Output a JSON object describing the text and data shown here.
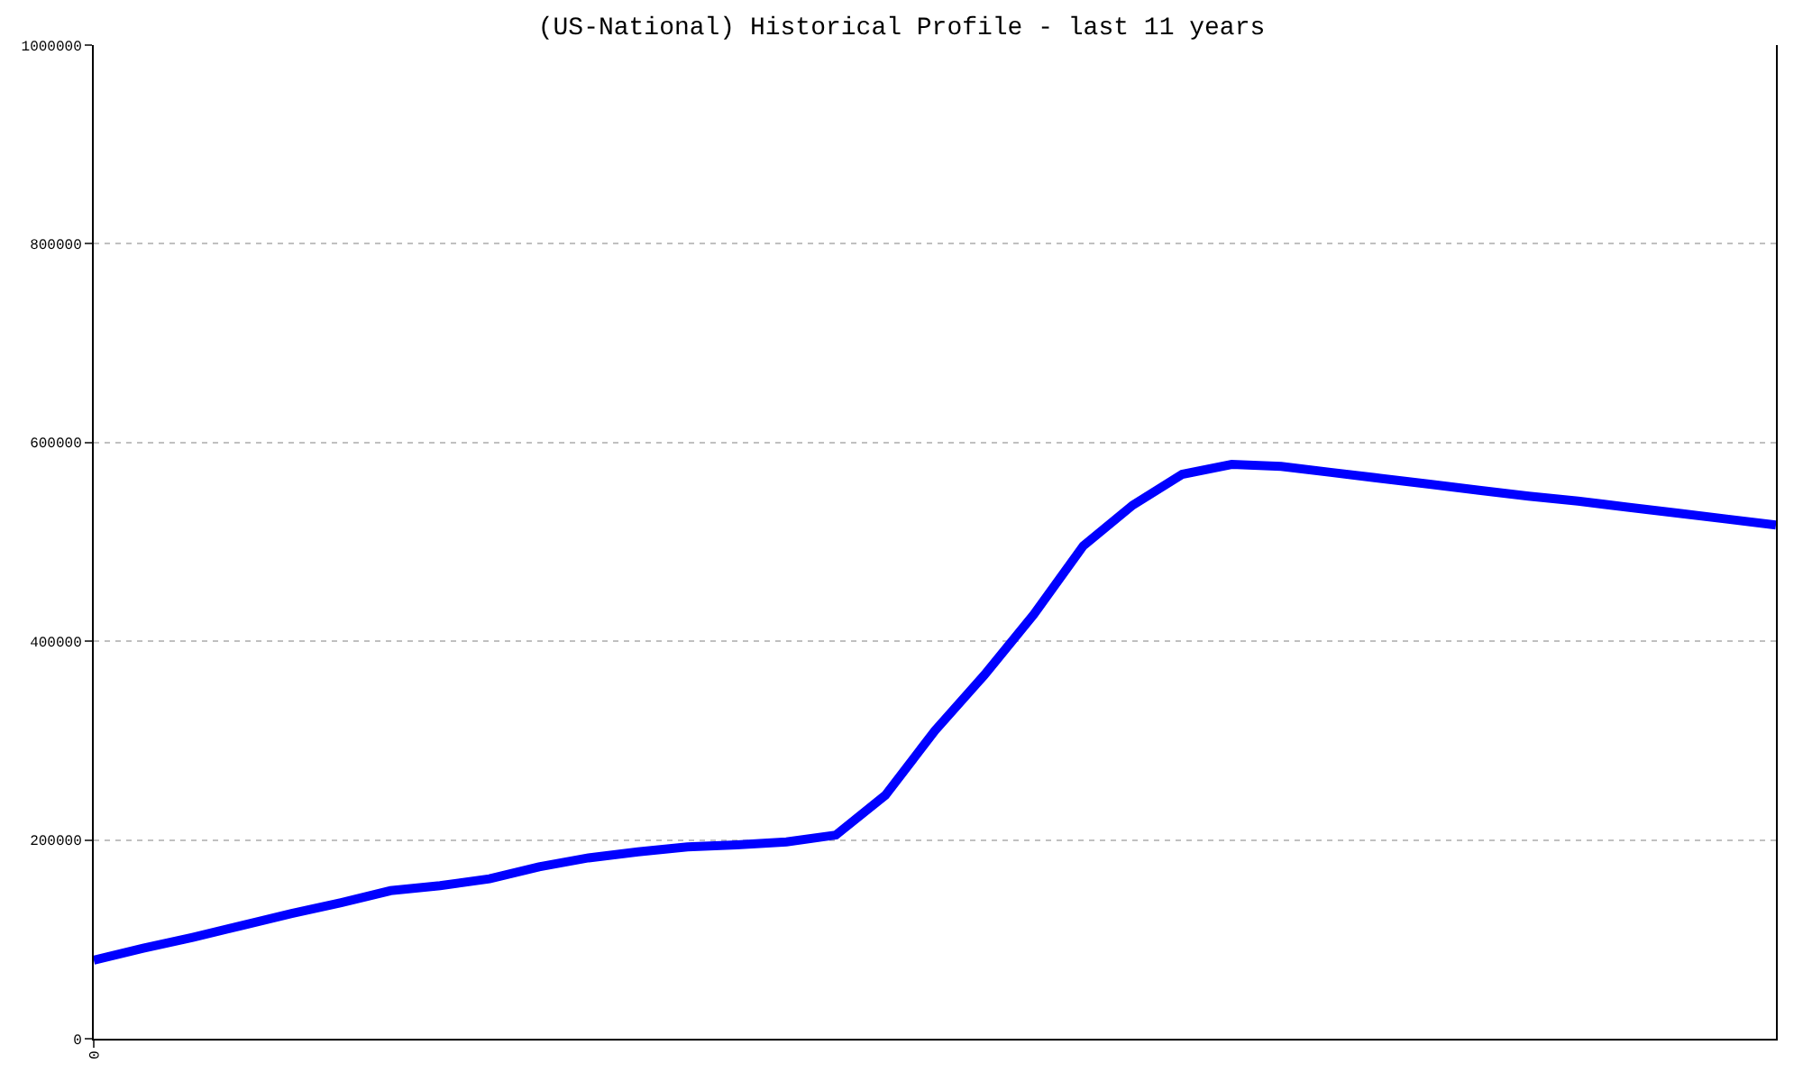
{
  "chart_data": {
    "type": "line",
    "title": "(US-National) Historical Profile - last 11 years",
    "categories": [
      "0",
      null,
      null,
      null,
      null,
      null,
      null,
      null,
      null,
      null,
      null,
      null,
      null,
      null,
      null,
      null,
      null,
      null,
      null,
      null,
      null,
      null,
      null,
      null,
      null,
      null,
      null,
      null,
      null,
      null,
      null,
      null,
      null,
      null,
      null
    ],
    "series": [
      {
        "color": "#0000ff",
        "values": [
          79000,
          91000,
          102000,
          114000,
          126000,
          137000,
          149000,
          154000,
          161000,
          173000,
          182000,
          188000,
          193000,
          195000,
          198000,
          205000,
          245000,
          310000,
          366000,
          427000,
          496000,
          537000,
          568000,
          578000,
          576000,
          570000,
          564000,
          558000,
          552000,
          546000,
          541000,
          535000,
          529000,
          523000,
          517000
        ]
      }
    ],
    "ylim": [
      0,
      1000000
    ],
    "yticks": [
      0,
      200000,
      400000,
      600000,
      800000,
      1000000
    ],
    "grid": "y",
    "legend": false,
    "marker": "none",
    "line_style": "solid"
  }
}
